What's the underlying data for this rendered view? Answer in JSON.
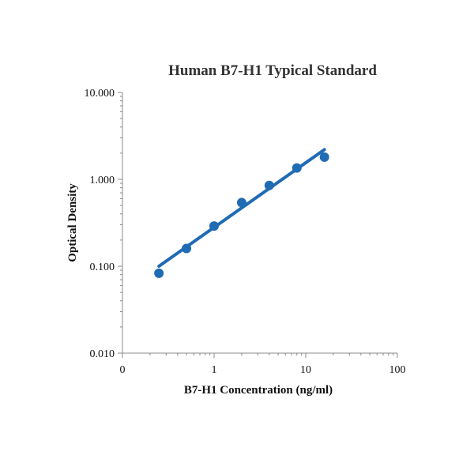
{
  "chart_data": {
    "type": "scatter",
    "title": "Human B7-H1 Typical Standard",
    "xlabel": "B7-H1 Concentration (ng/ml)",
    "ylabel": "Optical Density",
    "x_scale": "log",
    "y_scale": "log",
    "xlim": [
      0.1,
      100
    ],
    "ylim": [
      0.01,
      10
    ],
    "x_tick_values": [
      0.1,
      1,
      10,
      100
    ],
    "x_tick_labels": [
      "0",
      "1",
      "10",
      "100"
    ],
    "y_tick_values": [
      0.01,
      0.1,
      1,
      10
    ],
    "y_tick_labels": [
      "0.010",
      "0.100",
      "1.000",
      "10.000"
    ],
    "grid": false,
    "legend": "none",
    "series": [
      {
        "x": [
          0.25,
          0.5,
          1,
          2,
          4,
          8,
          16
        ],
        "y": [
          0.083,
          0.16,
          0.29,
          0.54,
          0.85,
          1.35,
          1.8
        ]
      }
    ],
    "trendline": {
      "type": "power",
      "x_range": [
        0.25,
        16
      ],
      "y_range": [
        0.1,
        2.2
      ]
    },
    "colors": {
      "marker": "#1f6bb4",
      "line": "#1f6bb4"
    }
  }
}
